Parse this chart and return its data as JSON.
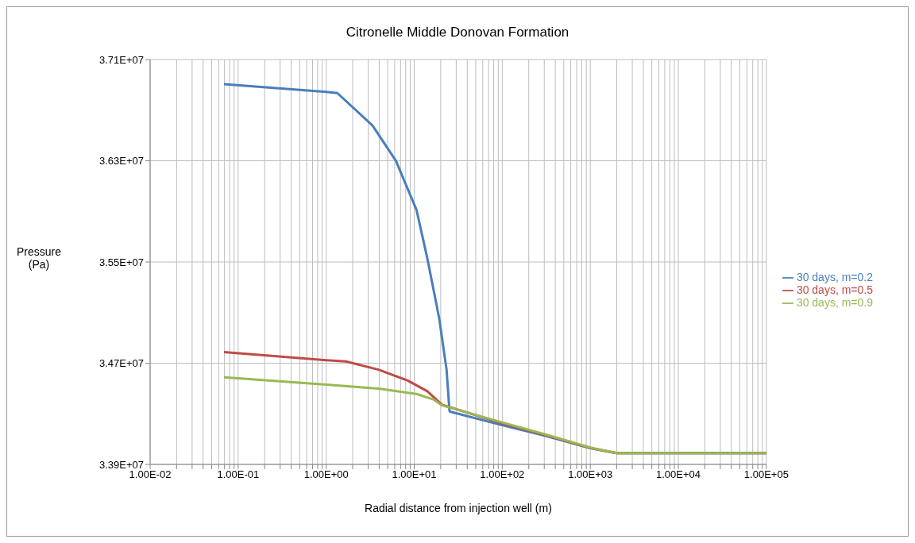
{
  "chart_data": {
    "type": "line",
    "title": "Citronelle Middle Donovan Formation",
    "xlabel": "Radial distance from injection well (m)",
    "ylabel": "Pressure (Pa)",
    "log": "x",
    "grid": true,
    "legend": "right",
    "marker": "none",
    "line_style": "solid",
    "xlim": [
      0.01,
      100000
    ],
    "ylim": [
      33900000,
      37100000
    ],
    "xticks": [
      {
        "value": 0.01,
        "label": "1.00E-02"
      },
      {
        "value": 0.02,
        "label": null
      },
      {
        "value": 0.03,
        "label": null
      },
      {
        "value": 0.04,
        "label": null
      },
      {
        "value": 0.05,
        "label": null
      },
      {
        "value": 0.06,
        "label": null
      },
      {
        "value": 0.07,
        "label": null
      },
      {
        "value": 0.08,
        "label": null
      },
      {
        "value": 0.09,
        "label": null
      },
      {
        "value": 0.1,
        "label": "1.00E-01"
      },
      {
        "value": 0.2,
        "label": null
      },
      {
        "value": 0.3,
        "label": null
      },
      {
        "value": 0.4,
        "label": null
      },
      {
        "value": 0.5,
        "label": null
      },
      {
        "value": 0.6,
        "label": null
      },
      {
        "value": 0.7,
        "label": null
      },
      {
        "value": 0.8,
        "label": null
      },
      {
        "value": 0.9,
        "label": null
      },
      {
        "value": 1,
        "label": "1.00E+00"
      },
      {
        "value": 2,
        "label": null
      },
      {
        "value": 3,
        "label": null
      },
      {
        "value": 4,
        "label": null
      },
      {
        "value": 5,
        "label": null
      },
      {
        "value": 6,
        "label": null
      },
      {
        "value": 7,
        "label": null
      },
      {
        "value": 8,
        "label": null
      },
      {
        "value": 9,
        "label": null
      },
      {
        "value": 10,
        "label": "1.00E+01"
      },
      {
        "value": 20,
        "label": null
      },
      {
        "value": 30,
        "label": null
      },
      {
        "value": 40,
        "label": null
      },
      {
        "value": 50,
        "label": null
      },
      {
        "value": 60,
        "label": null
      },
      {
        "value": 70,
        "label": null
      },
      {
        "value": 80,
        "label": null
      },
      {
        "value": 90,
        "label": null
      },
      {
        "value": 100,
        "label": "1.00E+02"
      },
      {
        "value": 200,
        "label": null
      },
      {
        "value": 300,
        "label": null
      },
      {
        "value": 400,
        "label": null
      },
      {
        "value": 500,
        "label": null
      },
      {
        "value": 600,
        "label": null
      },
      {
        "value": 700,
        "label": null
      },
      {
        "value": 800,
        "label": null
      },
      {
        "value": 900,
        "label": null
      },
      {
        "value": 1000,
        "label": "1.00E+03"
      },
      {
        "value": 2000,
        "label": null
      },
      {
        "value": 3000,
        "label": null
      },
      {
        "value": 4000,
        "label": null
      },
      {
        "value": 5000,
        "label": null
      },
      {
        "value": 6000,
        "label": null
      },
      {
        "value": 7000,
        "label": null
      },
      {
        "value": 8000,
        "label": null
      },
      {
        "value": 9000,
        "label": null
      },
      {
        "value": 10000,
        "label": "1.00E+04"
      },
      {
        "value": 20000,
        "label": null
      },
      {
        "value": 30000,
        "label": null
      },
      {
        "value": 40000,
        "label": null
      },
      {
        "value": 50000,
        "label": null
      },
      {
        "value": 60000,
        "label": null
      },
      {
        "value": 70000,
        "label": null
      },
      {
        "value": 80000,
        "label": null
      },
      {
        "value": 90000,
        "label": null
      },
      {
        "value": 100000,
        "label": "1.00E+05"
      }
    ],
    "yticks": [
      {
        "value": 33900000,
        "label": "3.39E+07"
      },
      {
        "value": 34700000,
        "label": "3.47E+07"
      },
      {
        "value": 35500000,
        "label": "3.55E+07"
      },
      {
        "value": 36300000,
        "label": "3.63E+07"
      },
      {
        "value": 37100000,
        "label": "3.71E+07"
      }
    ],
    "series": [
      {
        "name": "30 days, m=0.2",
        "color": "#4a7ebb",
        "x": [
          0.069,
          1,
          1.34,
          3.36,
          6.2,
          10.6,
          14.1,
          19.2,
          23.3,
          25.1,
          25.5,
          100,
          316,
          1000,
          2000,
          100000
        ],
        "values": [
          36905000,
          36845000,
          36835000,
          36578000,
          36299000,
          35913000,
          35527000,
          35056000,
          34649000,
          34328000,
          34317000,
          34210000,
          34124000,
          34028000,
          33989000,
          33989000
        ]
      },
      {
        "name": "30 days, m=0.5",
        "color": "#be4b48",
        "x": [
          0.069,
          1,
          1.67,
          3.92,
          8.45,
          14.1,
          20.7,
          100,
          316,
          1000,
          2000,
          100000
        ],
        "values": [
          34788000,
          34724000,
          34714000,
          34649000,
          34563000,
          34478000,
          34371000,
          34225000,
          34130000,
          34030000,
          33989000,
          33989000
        ]
      },
      {
        "name": "30 days, m=0.9",
        "color": "#98b954",
        "x": [
          0.069,
          1,
          3.92,
          10.6,
          16.5,
          19.2,
          20.7,
          100,
          316,
          1000,
          2000,
          100000
        ],
        "values": [
          34589000,
          34531000,
          34499000,
          34457000,
          34414000,
          34382000,
          34367000,
          34232000,
          34135000,
          34033000,
          33989000,
          33989000
        ]
      }
    ]
  }
}
